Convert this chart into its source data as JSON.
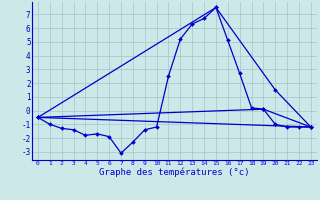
{
  "xlabel": "Graphe des températures (°c)",
  "bg_color": "#cce8e8",
  "grid_color": "#aacccc",
  "line_color": "#0000cc",
  "yticks": [
    -3,
    -2,
    -1,
    0,
    1,
    2,
    3,
    4,
    5,
    6,
    7
  ],
  "xticks": [
    0,
    1,
    2,
    3,
    4,
    5,
    6,
    7,
    8,
    9,
    10,
    11,
    12,
    13,
    14,
    15,
    16,
    17,
    18,
    19,
    20,
    21,
    22,
    23
  ],
  "xlim": [
    -0.5,
    23.5
  ],
  "ylim": [
    -3.6,
    7.9
  ],
  "series": [
    {
      "x": [
        0,
        1,
        2,
        3,
        4,
        5,
        6,
        7,
        8,
        9,
        10,
        11,
        12,
        13,
        14,
        15,
        16,
        17,
        18,
        19,
        20,
        21,
        22,
        23
      ],
      "y": [
        -0.5,
        -1.0,
        -1.3,
        -1.4,
        -1.8,
        -1.7,
        -1.9,
        -3.1,
        -2.3,
        -1.4,
        -1.2,
        2.5,
        5.2,
        6.3,
        6.7,
        7.5,
        5.1,
        2.7,
        0.2,
        0.1,
        -1.0,
        -1.2,
        -1.2,
        -1.2
      ]
    },
    {
      "x": [
        0,
        23
      ],
      "y": [
        -0.5,
        -1.2
      ]
    },
    {
      "x": [
        0,
        19,
        23
      ],
      "y": [
        -0.5,
        0.1,
        -1.2
      ]
    },
    {
      "x": [
        0,
        15,
        20,
        23
      ],
      "y": [
        -0.5,
        7.5,
        1.5,
        -1.2
      ]
    }
  ]
}
